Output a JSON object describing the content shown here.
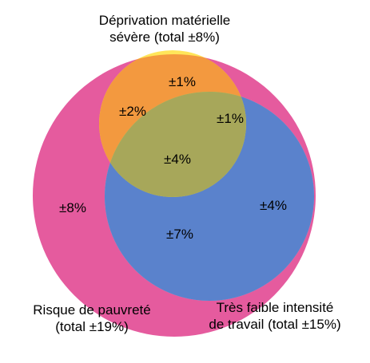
{
  "sets": {
    "deprivation": {
      "line1": "Déprivation matérielle",
      "line2": "sévère (total ±8%)",
      "color": "#FFE65A"
    },
    "poverty": {
      "line1": "Risque de pauvreté",
      "line2": "(total ±19%)",
      "color": "#E55B9E"
    },
    "work": {
      "line1": "Très faible intensité",
      "line2": "de travail (total ±15%)",
      "color": "#78E4F5"
    }
  },
  "regions": {
    "deprivation_only": "±1%",
    "deprivation_poverty": "±2%",
    "deprivation_work": "±1%",
    "all_three": "±4%",
    "poverty_only": "±8%",
    "work_only": "±4%",
    "poverty_work": "±7%"
  },
  "overlap_colors": {
    "deprivation_poverty": "#F3993F",
    "deprivation_work": "#B7E56C",
    "all_three": "#A7A75A",
    "poverty_work": "#5A82CC"
  }
}
